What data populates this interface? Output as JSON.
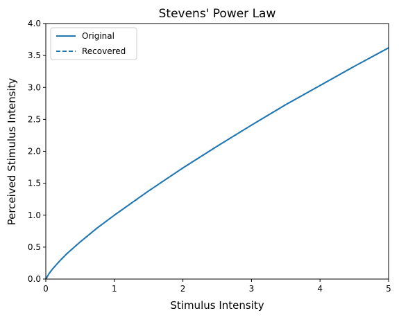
{
  "chart_data": {
    "type": "line",
    "title": "Stevens' Power Law",
    "xlabel": "Stimulus Intensity",
    "ylabel": "Perceived Stimulus Intensity",
    "xlim": [
      0,
      5
    ],
    "ylim": [
      0,
      4.0
    ],
    "xticks": [
      0,
      1,
      2,
      3,
      4,
      5
    ],
    "xtick_labels": [
      "0",
      "1",
      "2",
      "3",
      "4",
      "5"
    ],
    "yticks": [
      0.0,
      0.5,
      1.0,
      1.5,
      2.0,
      2.5,
      3.0,
      3.5,
      4.0
    ],
    "ytick_labels": [
      "0.0",
      "0.5",
      "1.0",
      "1.5",
      "2.0",
      "2.5",
      "3.0",
      "3.5",
      "4.0"
    ],
    "grid": false,
    "legend_position": "top-left",
    "x": [
      0,
      0.05,
      0.1,
      0.2,
      0.3,
      0.5,
      0.75,
      1.0,
      1.25,
      1.5,
      1.75,
      2.0,
      2.5,
      3.0,
      3.5,
      4.0,
      4.5,
      5.0
    ],
    "series": [
      {
        "name": "Original",
        "style": "solid",
        "color": "#1f77b4",
        "values": [
          0,
          0.09,
          0.16,
          0.28,
          0.39,
          0.58,
          0.8,
          1.0,
          1.19,
          1.38,
          1.56,
          1.74,
          2.08,
          2.41,
          2.73,
          3.03,
          3.33,
          3.62
        ]
      },
      {
        "name": "Recovered",
        "style": "dashed",
        "color": "#1f77b4",
        "values": [
          0,
          0.09,
          0.16,
          0.28,
          0.39,
          0.58,
          0.8,
          1.0,
          1.19,
          1.38,
          1.56,
          1.74,
          2.08,
          2.41,
          2.73,
          3.03,
          3.33,
          3.62
        ]
      }
    ]
  }
}
